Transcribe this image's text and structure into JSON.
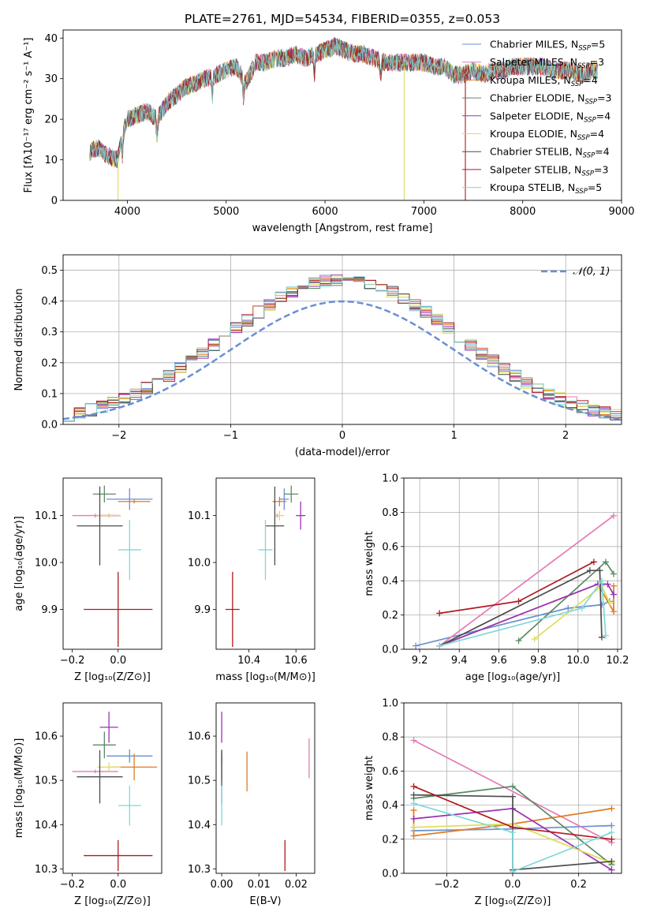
{
  "colors": {
    "Chabrier MILES": "#6a8fd0",
    "Salpeter MILES": "#e37bb6",
    "Kroupa MILES": "#e07b26",
    "Chabrier ELODIE": "#5a8a63",
    "Salpeter ELODIE": "#9b30b4",
    "Kroupa ELODIE": "#dede57",
    "Chabrier STELIB": "#4d4d4d",
    "Salpeter STELIB": "#b0191f",
    "Kroupa STELIB": "#7fd8d8"
  },
  "chart_data": [
    {
      "type": "line",
      "title": "PLATE=2761, MJD=54534, FIBERID=0355, z=0.053",
      "xlabel": "wavelength [Angstrom, rest frame]",
      "ylabel": "Flux [fλ10⁻¹⁷ erg cm⁻² s⁻¹ A⁻¹]",
      "xlim": [
        3350,
        9000
      ],
      "ylim": [
        0,
        42
      ],
      "xticks": [
        "4000",
        "5000",
        "6000",
        "7000",
        "8000",
        "9000"
      ],
      "yticks": [
        "0",
        "10",
        "20",
        "30",
        "40"
      ],
      "legend_position": "top-right",
      "legend": [
        {
          "name": "Chabrier MILES",
          "nssp": "5"
        },
        {
          "name": "Salpeter MILES",
          "nssp": "3"
        },
        {
          "name": "Kroupa MILES",
          "nssp": "4"
        },
        {
          "name": "Chabrier ELODIE",
          "nssp": "3"
        },
        {
          "name": "Salpeter ELODIE",
          "nssp": "4"
        },
        {
          "name": "Kroupa ELODIE",
          "nssp": "4"
        },
        {
          "name": "Chabrier STELIB",
          "nssp": "4"
        },
        {
          "name": "Salpeter STELIB",
          "nssp": "3"
        },
        {
          "name": "Kroupa STELIB",
          "nssp": "5"
        }
      ],
      "spectrum_envelope": {
        "x": [
          3620,
          3700,
          3800,
          3900,
          3950,
          4000,
          4100,
          4200,
          4300,
          4400,
          4500,
          4600,
          4700,
          4800,
          4900,
          5000,
          5100,
          5200,
          5300,
          5400,
          5500,
          5600,
          5700,
          5800,
          5900,
          6000,
          6100,
          6200,
          6300,
          6400,
          6500,
          6600,
          6700,
          6800,
          6900,
          7000,
          7100,
          7200,
          7300,
          7400,
          7500,
          7600,
          7700,
          7800,
          7900,
          8000,
          8100,
          8200,
          8300,
          8400,
          8500,
          8600,
          8700,
          8760
        ],
        "y": [
          12,
          13,
          11,
          10,
          16,
          20,
          21,
          22,
          20,
          24,
          26,
          28,
          29,
          30,
          31,
          32,
          33,
          29,
          34,
          34,
          35,
          35,
          36,
          35,
          36,
          37,
          38,
          37,
          36,
          36,
          35,
          34,
          34,
          34,
          34,
          34,
          33,
          33,
          31,
          31,
          32,
          31,
          32,
          32,
          33,
          33,
          33,
          33,
          32,
          32,
          32,
          31,
          32,
          32
        ]
      },
      "dropouts": [
        {
          "series": "Kroupa ELODIE",
          "x": 3905
        },
        {
          "series": "Kroupa ELODIE",
          "x": 6800
        },
        {
          "series": "Salpeter STELIB",
          "x": 7420
        }
      ]
    },
    {
      "type": "histogram",
      "xlabel": "(data-model)/error",
      "ylabel": "Normed distribution",
      "xlim": [
        -2.5,
        2.5
      ],
      "ylim": [
        0,
        0.55
      ],
      "xticks": [
        "−2",
        "−1",
        "0",
        "1",
        "2"
      ],
      "yticks": [
        "0.0",
        "0.1",
        "0.2",
        "0.3",
        "0.4",
        "0.5"
      ],
      "grid": true,
      "reference_curve": {
        "name": "𝒩(0, 1)",
        "mean": 0,
        "sigma": 1
      },
      "legend_position": "top-right"
    },
    {
      "type": "scatter",
      "name": "age vs Z",
      "xlabel": "Z [log₁₀(Z/Z⊙)]",
      "ylabel": "age  [log₁₀(age/yr)]",
      "xlim": [
        -0.24,
        0.19
      ],
      "ylim": [
        9.815,
        10.18
      ],
      "xticks": [
        "−0.2",
        "0.0"
      ],
      "yticks": [
        "9.9",
        "10.0",
        "10.1"
      ],
      "points": [
        {
          "series": "Chabrier MILES",
          "x": 0.05,
          "xerr": 0.1,
          "y": 10.135,
          "yerr": 0.023
        },
        {
          "series": "Salpeter MILES",
          "x": -0.1,
          "xerr": 0.1,
          "y": 10.1,
          "yerr": 0.004
        },
        {
          "series": "Kroupa MILES",
          "x": 0.07,
          "xerr": 0.07,
          "y": 10.13,
          "yerr": 0.004
        },
        {
          "series": "Chabrier ELODIE",
          "x": -0.06,
          "xerr": 0.05,
          "y": 10.146,
          "yerr": 0.018
        },
        {
          "series": "Salpeter ELODIE",
          "x": -0.04,
          "xerr": 0.05,
          "y": 10.1,
          "yerr": 0.004
        },
        {
          "series": "Kroupa ELODIE",
          "x": -0.04,
          "xerr": 0.05,
          "y": 10.1,
          "yerr": 0.004
        },
        {
          "series": "Chabrier STELIB",
          "x": -0.08,
          "xerr": 0.1,
          "y": 10.078,
          "yerr": 0.084
        },
        {
          "series": "Salpeter STELIB",
          "x": 0.0,
          "xerr": 0.15,
          "y": 9.9,
          "yerr": 0.08
        },
        {
          "series": "Kroupa STELIB",
          "x": 0.05,
          "xerr": 0.05,
          "y": 10.027,
          "yerr": 0.064
        }
      ]
    },
    {
      "type": "scatter",
      "name": "age vs mass",
      "xlabel": "mass [log₁₀(M/M⊙)]",
      "ylabel": "",
      "xlim": [
        10.26,
        10.68
      ],
      "ylim": [
        9.815,
        10.18
      ],
      "xticks": [
        "10.4",
        "10.6"
      ],
      "yticks": [
        "9.9",
        "10.0",
        "10.1"
      ],
      "points": [
        {
          "series": "Chabrier MILES",
          "x": 10.55,
          "xerr": 0.02,
          "y": 10.135,
          "yerr": 0.023
        },
        {
          "series": "Salpeter MILES",
          "x": 10.52,
          "xerr": 0.01,
          "y": 10.1,
          "yerr": 0.004
        },
        {
          "series": "Kroupa MILES",
          "x": 10.53,
          "xerr": 0.03,
          "y": 10.13,
          "yerr": 0.01
        },
        {
          "series": "Chabrier ELODIE",
          "x": 10.58,
          "xerr": 0.03,
          "y": 10.146,
          "yerr": 0.018
        },
        {
          "series": "Salpeter ELODIE",
          "x": 10.62,
          "xerr": 0.02,
          "y": 10.1,
          "yerr": 0.03
        },
        {
          "series": "Kroupa ELODIE",
          "x": 10.53,
          "xerr": 0.02,
          "y": 10.1,
          "yerr": 0.01
        },
        {
          "series": "Chabrier STELIB",
          "x": 10.51,
          "xerr": 0.04,
          "y": 10.078,
          "yerr": 0.084
        },
        {
          "series": "Salpeter STELIB",
          "x": 10.33,
          "xerr": 0.03,
          "y": 9.9,
          "yerr": 0.08
        },
        {
          "series": "Kroupa STELIB",
          "x": 10.47,
          "xerr": 0.03,
          "y": 10.027,
          "yerr": 0.064
        }
      ]
    },
    {
      "type": "line",
      "name": "mass weight vs age",
      "xlabel": "age  [log₁₀(age/yr)]",
      "ylabel": "mass weight",
      "xlim": [
        9.12,
        10.22
      ],
      "ylim": [
        0,
        1
      ],
      "xticks": [
        "9.2",
        "9.4",
        "9.6",
        "9.8",
        "10.0",
        "10.2"
      ],
      "yticks": [
        "0.0",
        "0.2",
        "0.4",
        "0.6",
        "0.8",
        "1.0"
      ],
      "grid": true,
      "series": [
        {
          "series": "Chabrier MILES",
          "points": [
            [
              9.18,
              0.02
            ],
            [
              9.95,
              0.24
            ],
            [
              10.12,
              0.26
            ],
            [
              10.16,
              0.28
            ]
          ]
        },
        {
          "series": "Salpeter MILES",
          "points": [
            [
              9.3,
              0.02
            ],
            [
              10.18,
              0.78
            ]
          ]
        },
        {
          "series": "Kroupa MILES",
          "points": [
            [
              9.3,
              0.02
            ],
            [
              10.1,
              0.38
            ],
            [
              10.18,
              0.22
            ],
            [
              10.18,
              0.37
            ]
          ]
        },
        {
          "series": "Chabrier ELODIE",
          "points": [
            [
              9.7,
              0.05
            ],
            [
              10.14,
              0.51
            ],
            [
              10.18,
              0.44
            ]
          ]
        },
        {
          "series": "Salpeter ELODIE",
          "points": [
            [
              9.3,
              0.02
            ],
            [
              10.1,
              0.38
            ],
            [
              10.15,
              0.38
            ],
            [
              10.18,
              0.32
            ]
          ]
        },
        {
          "series": "Kroupa ELODIE",
          "points": [
            [
              9.78,
              0.06
            ],
            [
              10.12,
              0.37
            ],
            [
              10.16,
              0.27
            ]
          ]
        },
        {
          "series": "Chabrier STELIB",
          "points": [
            [
              9.3,
              0.02
            ],
            [
              10.06,
              0.46
            ],
            [
              10.11,
              0.46
            ],
            [
              10.12,
              0.07
            ]
          ]
        },
        {
          "series": "Salpeter STELIB",
          "points": [
            [
              9.3,
              0.21
            ],
            [
              9.7,
              0.28
            ],
            [
              10.08,
              0.51
            ]
          ]
        },
        {
          "series": "Kroupa STELIB",
          "points": [
            [
              9.3,
              0.02
            ],
            [
              10.02,
              0.24
            ],
            [
              10.12,
              0.4
            ],
            [
              10.14,
              0.08
            ]
          ]
        }
      ]
    },
    {
      "type": "scatter",
      "name": "mass vs Z",
      "xlabel": "Z [log₁₀(Z/Z⊙)]",
      "ylabel": "mass [log₁₀(M/M⊙)]",
      "xlim": [
        -0.24,
        0.19
      ],
      "ylim": [
        10.29,
        10.675
      ],
      "xticks": [
        "−0.2",
        "0.0"
      ],
      "yticks": [
        "10.3",
        "10.4",
        "10.5",
        "10.6"
      ],
      "points": [
        {
          "series": "Chabrier MILES",
          "x": 0.05,
          "xerr": 0.1,
          "y": 10.555,
          "yerr": 0.015
        },
        {
          "series": "Salpeter MILES",
          "x": -0.1,
          "xerr": 0.1,
          "y": 10.52,
          "yerr": 0.004
        },
        {
          "series": "Kroupa MILES",
          "x": 0.07,
          "xerr": 0.1,
          "y": 10.53,
          "yerr": 0.03
        },
        {
          "series": "Chabrier ELODIE",
          "x": -0.06,
          "xerr": 0.05,
          "y": 10.58,
          "yerr": 0.03
        },
        {
          "series": "Salpeter ELODIE",
          "x": -0.04,
          "xerr": 0.04,
          "y": 10.62,
          "yerr": 0.035
        },
        {
          "series": "Kroupa ELODIE",
          "x": -0.04,
          "xerr": 0.05,
          "y": 10.53,
          "yerr": 0.01
        },
        {
          "series": "Chabrier STELIB",
          "x": -0.08,
          "xerr": 0.1,
          "y": 10.508,
          "yerr": 0.06
        },
        {
          "series": "Salpeter STELIB",
          "x": 0.0,
          "xerr": 0.15,
          "y": 10.33,
          "yerr": 0.035
        },
        {
          "series": "Kroupa STELIB",
          "x": 0.05,
          "xerr": 0.05,
          "y": 10.443,
          "yerr": 0.045
        }
      ]
    },
    {
      "type": "scatter",
      "name": "mass vs E(B-V)",
      "xlabel": "E(B-V)",
      "ylabel": "",
      "xlim": [
        -0.0015,
        0.025
      ],
      "ylim": [
        10.29,
        10.675
      ],
      "xticks": [
        "0.00",
        "0.01",
        "0.02"
      ],
      "yticks": [
        "10.3",
        "10.4",
        "10.5",
        "10.6"
      ],
      "points": [
        {
          "series": "Chabrier MILES",
          "x": 0.0,
          "xerr": 0.0,
          "y": 10.555,
          "yerr": 0.015
        },
        {
          "series": "Salpeter MILES",
          "x": 0.0235,
          "xerr": 0.0,
          "y": 10.55,
          "yerr": 0.045
        },
        {
          "series": "Kroupa MILES",
          "x": 0.0068,
          "xerr": 0.0,
          "y": 10.52,
          "yerr": 0.045
        },
        {
          "series": "Chabrier ELODIE",
          "x": 0.0,
          "xerr": 0.0,
          "y": 10.53,
          "yerr": 0.03
        },
        {
          "series": "Salpeter ELODIE",
          "x": 0.0,
          "xerr": 0.0,
          "y": 10.62,
          "yerr": 0.035
        },
        {
          "series": "Kroupa ELODIE",
          "x": 0.0,
          "xerr": 0.0,
          "y": 10.53,
          "yerr": 0.01
        },
        {
          "series": "Chabrier STELIB",
          "x": 0.0,
          "xerr": 0.0,
          "y": 10.508,
          "yerr": 0.06
        },
        {
          "series": "Salpeter STELIB",
          "x": 0.017,
          "xerr": 0.0,
          "y": 10.33,
          "yerr": 0.035
        },
        {
          "series": "Kroupa STELIB",
          "x": 0.0,
          "xerr": 0.0,
          "y": 10.443,
          "yerr": 0.045
        }
      ]
    },
    {
      "type": "line",
      "name": "mass weight vs Z",
      "xlabel": "Z [log₁₀(Z/Z⊙)]",
      "ylabel": "mass weight",
      "xlim": [
        -0.33,
        0.33
      ],
      "ylim": [
        0,
        1
      ],
      "xticks": [
        "−0.2",
        "0.0",
        "0.2"
      ],
      "yticks": [
        "0.0",
        "0.2",
        "0.4",
        "0.6",
        "0.8",
        "1.0"
      ],
      "grid": true,
      "series": [
        {
          "series": "Chabrier MILES",
          "points": [
            [
              -0.3,
              0.25
            ],
            [
              0.0,
              0.26
            ],
            [
              0.3,
              0.28
            ]
          ]
        },
        {
          "series": "Salpeter MILES",
          "points": [
            [
              -0.3,
              0.78
            ],
            [
              0.3,
              0.18
            ]
          ]
        },
        {
          "series": "Kroupa MILES",
          "points": [
            [
              -0.3,
              0.37
            ],
            [
              -0.3,
              0.22
            ],
            [
              0.0,
              0.29
            ],
            [
              0.3,
              0.38
            ]
          ]
        },
        {
          "series": "Chabrier ELODIE",
          "points": [
            [
              -0.3,
              0.44
            ],
            [
              0.0,
              0.51
            ],
            [
              0.3,
              0.05
            ]
          ]
        },
        {
          "series": "Salpeter ELODIE",
          "points": [
            [
              -0.3,
              0.32
            ],
            [
              0.0,
              0.38
            ],
            [
              0.3,
              0.02
            ]
          ]
        },
        {
          "series": "Kroupa ELODIE",
          "points": [
            [
              -0.3,
              0.27
            ],
            [
              0.0,
              0.29
            ],
            [
              0.3,
              0.06
            ]
          ]
        },
        {
          "series": "Chabrier STELIB",
          "points": [
            [
              -0.3,
              0.46
            ],
            [
              0.0,
              0.45
            ],
            [
              0.0,
              0.02
            ],
            [
              0.3,
              0.07
            ]
          ]
        },
        {
          "series": "Salpeter STELIB",
          "points": [
            [
              -0.3,
              0.51
            ],
            [
              0.0,
              0.27
            ],
            [
              0.3,
              0.2
            ]
          ]
        },
        {
          "series": "Kroupa STELIB",
          "points": [
            [
              -0.3,
              0.41
            ],
            [
              0.0,
              0.24
            ],
            [
              0.0,
              0.01
            ],
            [
              0.3,
              0.24
            ]
          ]
        }
      ]
    }
  ]
}
